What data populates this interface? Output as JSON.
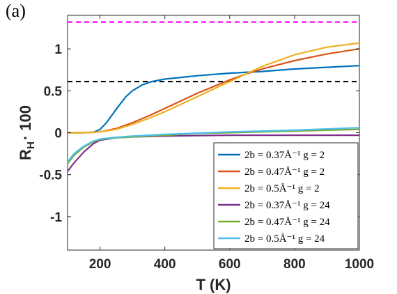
{
  "panel_label": "(a)",
  "chart_data": {
    "type": "line",
    "xlabel": "T (K)",
    "ylabel": "R",
    "ylabel_subscript": "H",
    "ylabel_suffix": "· 100",
    "xlim": [
      100,
      1000
    ],
    "ylim": [
      -1.4,
      1.4
    ],
    "xticks": [
      200,
      400,
      600,
      800,
      1000
    ],
    "yticks": [
      -1,
      -0.5,
      0,
      0.5,
      1
    ],
    "grid": false,
    "legend_position": "bottom-right",
    "reference_lines": [
      {
        "y": 1.32,
        "color": "#ff00ff",
        "style": "dashed"
      },
      {
        "y": 0.61,
        "color": "#000000",
        "style": "dashed"
      }
    ],
    "series": [
      {
        "name": "2b = 0.37Å⁻¹ g = 2",
        "color": "#0072BD",
        "x": [
          100,
          150,
          180,
          200,
          220,
          250,
          280,
          300,
          330,
          360,
          400,
          450,
          500,
          600,
          700,
          800,
          900,
          1000
        ],
        "y": [
          0,
          0,
          0.005,
          0.04,
          0.12,
          0.28,
          0.43,
          0.5,
          0.57,
          0.61,
          0.64,
          0.66,
          0.68,
          0.71,
          0.73,
          0.76,
          0.78,
          0.8
        ]
      },
      {
        "name": "2b = 0.47Å⁻¹ g = 2",
        "color": "#D95319",
        "x": [
          100,
          150,
          200,
          250,
          300,
          350,
          400,
          450,
          500,
          550,
          600,
          650,
          700,
          800,
          900,
          1000
        ],
        "y": [
          0,
          0,
          0.01,
          0.05,
          0.12,
          0.2,
          0.29,
          0.38,
          0.47,
          0.55,
          0.63,
          0.7,
          0.76,
          0.86,
          0.94,
          1.0
        ]
      },
      {
        "name": "2b = 0.5Å⁻¹ g = 2",
        "color": "#EDB120",
        "x": [
          100,
          150,
          200,
          250,
          300,
          350,
          400,
          450,
          500,
          550,
          600,
          650,
          700,
          800,
          900,
          1000
        ],
        "y": [
          0,
          0,
          0.01,
          0.04,
          0.1,
          0.17,
          0.25,
          0.34,
          0.43,
          0.52,
          0.61,
          0.7,
          0.79,
          0.93,
          1.02,
          1.07
        ]
      },
      {
        "name": "2b = 0.37Å⁻¹ g = 24",
        "color": "#7E2F8E",
        "x": [
          100,
          120,
          150,
          180,
          200,
          250,
          300,
          400,
          500,
          600,
          700,
          800,
          900,
          1000
        ],
        "y": [
          -0.46,
          -0.36,
          -0.23,
          -0.13,
          -0.09,
          -0.06,
          -0.05,
          -0.04,
          -0.035,
          -0.03,
          -0.03,
          -0.03,
          -0.03,
          -0.03
        ]
      },
      {
        "name": "2b = 0.47Å⁻¹ g = 24",
        "color": "#77AC30",
        "x": [
          100,
          120,
          150,
          180,
          200,
          250,
          300,
          400,
          500,
          600,
          700,
          800,
          900,
          1000
        ],
        "y": [
          -0.37,
          -0.27,
          -0.17,
          -0.11,
          -0.08,
          -0.06,
          -0.05,
          -0.03,
          -0.01,
          0.0,
          0.01,
          0.02,
          0.03,
          0.04
        ]
      },
      {
        "name": "2b = 0.5Å⁻¹ g = 24",
        "color": "#4DBEEE",
        "x": [
          100,
          120,
          150,
          180,
          200,
          250,
          300,
          400,
          500,
          600,
          700,
          800,
          900,
          1000
        ],
        "y": [
          -0.35,
          -0.25,
          -0.16,
          -0.1,
          -0.075,
          -0.055,
          -0.04,
          -0.02,
          -0.005,
          0.01,
          0.02,
          0.03,
          0.045,
          0.06
        ]
      }
    ]
  }
}
